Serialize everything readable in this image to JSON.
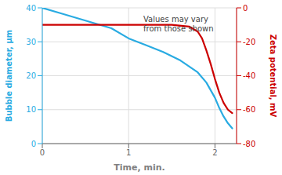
{
  "chart_data": {
    "type": "line",
    "xlabel": "Time, min.",
    "ylabel": "Bubble diameter, μm",
    "y2label": "Zeta potential, mV",
    "xlim": [
      0,
      2.25
    ],
    "xticks": [
      0,
      1,
      2
    ],
    "ylim": [
      0,
      40
    ],
    "yticks": [
      0,
      10,
      20,
      30,
      40
    ],
    "y2lim": [
      -80,
      0
    ],
    "y2ticks": [
      0,
      -20,
      -40,
      -60,
      -80
    ],
    "grid": true,
    "series": [
      {
        "color": "#29ABE2",
        "x": [
          0,
          0.2,
          0.4,
          0.6,
          0.8,
          1.0,
          1.2,
          1.4,
          1.6,
          1.8,
          1.9,
          2.0,
          2.05,
          2.1,
          2.15,
          2.2
        ],
        "values": [
          40,
          38.5,
          37.0,
          35.5,
          34.0,
          31.0,
          29.0,
          27.0,
          24.5,
          21.0,
          18.0,
          13.5,
          10.5,
          8.0,
          6.0,
          4.5
        ]
      },
      {
        "color": "#CC0000",
        "axis": "y2",
        "x": [
          0,
          0.5,
          1.0,
          1.5,
          1.7,
          1.8,
          1.85,
          1.9,
          1.95,
          2.0,
          2.05,
          2.1,
          2.15,
          2.2
        ],
        "values": [
          -10,
          -10,
          -10,
          -10,
          -11,
          -14,
          -18,
          -25,
          -33,
          -42,
          -50,
          -56,
          -60,
          -62
        ]
      }
    ],
    "annotations": [
      {
        "text": "Values may vary\nfrom those shown",
        "x": 1.18,
        "y": 38
      }
    ]
  }
}
